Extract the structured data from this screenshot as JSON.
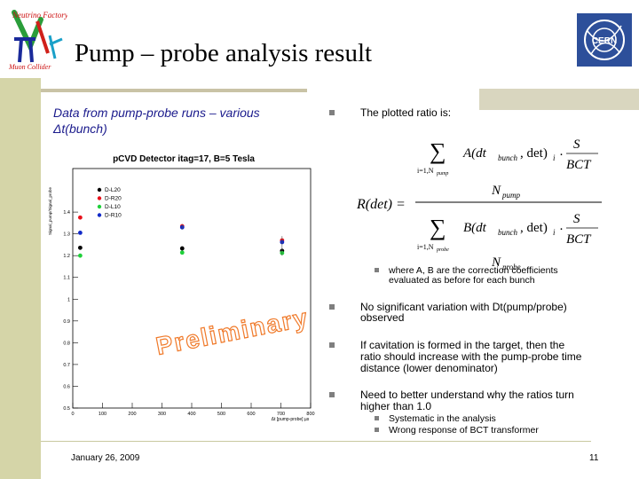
{
  "slide": {
    "title": "Pump – probe analysis result",
    "left_caption": "Data from pump-probe runs – various Δt(bunch)",
    "footer_date": "January 26, 2009",
    "page_number": "11",
    "logo_left_text": [
      "Neutrino Factory",
      "Muon Collider"
    ],
    "logo_right_text": "CERN"
  },
  "bullets": {
    "plotted_ratio": "The plotted ratio is:",
    "sub_note_line1": "where A, B are the correction coefficients",
    "sub_note_line2": "evaluated as before for each bunch",
    "no_variation_line1": "No significant variation with Dt(pump/probe)",
    "no_variation_line2": "observed",
    "cavitation_line1": "If cavitation is formed in the target, then the",
    "cavitation_line2": "ratio should increase with the pump-probe time",
    "cavitation_line3": "distance (lower denominator)",
    "need_line1": "Need to better understand why the ratios turn",
    "need_line2": "higher than 1.0",
    "sub1": "Systematic in the analysis",
    "sub2": "Wrong response of BCT transformer"
  },
  "formula": {
    "lhs": "R(det) =",
    "num_sum_sub": "i=1,N",
    "num_sum_subsub": "pump",
    "num_term": "A(dt",
    "num_term2": "bunch",
    "num_term3": ", det)",
    "num_i": "i",
    "num_s": "S",
    "num_bct": "BCT",
    "num_den": "N",
    "num_den_sub": "pump",
    "den_sum_subsub": "probe",
    "den_term": "B(dt",
    "den_den_sub": "probe"
  },
  "chart_data": {
    "type": "scatter",
    "title": "pCVD Detector itag=17, B=5 Tesla",
    "ylabel": "Signal_pump/Signal_probe",
    "xlabel": "Δt [pump-probe] µs",
    "xlim": [
      0,
      800
    ],
    "ylim": [
      0.5,
      1.6
    ],
    "x_ticks": [
      0,
      100,
      200,
      300,
      400,
      500,
      600,
      700,
      800
    ],
    "y_ticks": [
      0.5,
      0.6,
      0.7,
      0.8,
      0.9,
      1.0,
      1.1,
      1.2,
      1.3,
      1.4
    ],
    "watermark": "Preliminary",
    "series": [
      {
        "name": "D-L20",
        "color": "#000000",
        "points": [
          [
            25,
            1.236
          ],
          [
            368,
            1.233
          ],
          [
            704,
            1.222
          ]
        ]
      },
      {
        "name": "D-R20",
        "color": "#e8101a",
        "points": [
          [
            25,
            1.375
          ],
          [
            368,
            1.335
          ],
          [
            704,
            1.27
          ]
        ]
      },
      {
        "name": "D-L10",
        "color": "#1fd03a",
        "points": [
          [
            25,
            1.2
          ],
          [
            368,
            1.214
          ],
          [
            704,
            1.212
          ]
        ]
      },
      {
        "name": "D-R10",
        "color": "#1029c8",
        "points": [
          [
            25,
            1.305
          ],
          [
            368,
            1.33
          ],
          [
            704,
            1.262
          ]
        ]
      }
    ]
  },
  "colors": {
    "caption_blue": "#1a1a8c",
    "left_bar": "#d5d5a8",
    "bullet_gray": "#7f7f7f"
  }
}
